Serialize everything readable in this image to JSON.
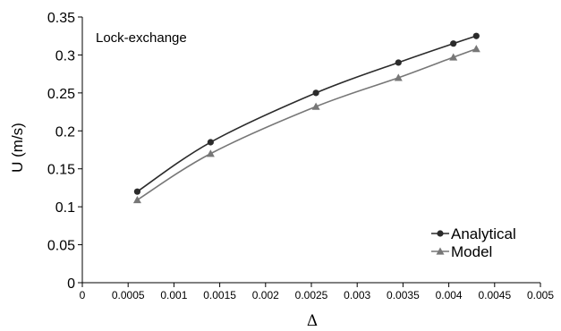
{
  "chart_data": {
    "type": "line",
    "annotation": "Lock-exchange",
    "xlabel": "Δ",
    "ylabel": "U (m/s)",
    "xlim": [
      0,
      0.005
    ],
    "ylim": [
      0,
      0.35
    ],
    "x_ticks": [
      "0",
      "0.0005",
      "0.001",
      "0.0015",
      "0.002",
      "0.0025",
      "0.003",
      "0.0035",
      "0.004",
      "0.0045",
      "0.005"
    ],
    "y_ticks": [
      "0",
      "0.05",
      "0.1",
      "0.15",
      "0.2",
      "0.25",
      "0.3",
      "0.35"
    ],
    "grid": false,
    "legend_position": "bottom-right",
    "series": [
      {
        "name": "Analytical",
        "marker": "circle",
        "color": "#2b2b2b",
        "x": [
          0.0006,
          0.0014,
          0.00255,
          0.00345,
          0.00405,
          0.0043
        ],
        "y": [
          0.12,
          0.185,
          0.25,
          0.29,
          0.315,
          0.325
        ]
      },
      {
        "name": "Model",
        "marker": "triangle",
        "color": "#777777",
        "x": [
          0.0006,
          0.0014,
          0.00255,
          0.00345,
          0.00405,
          0.0043
        ],
        "y": [
          0.109,
          0.17,
          0.232,
          0.27,
          0.297,
          0.308
        ]
      }
    ]
  }
}
